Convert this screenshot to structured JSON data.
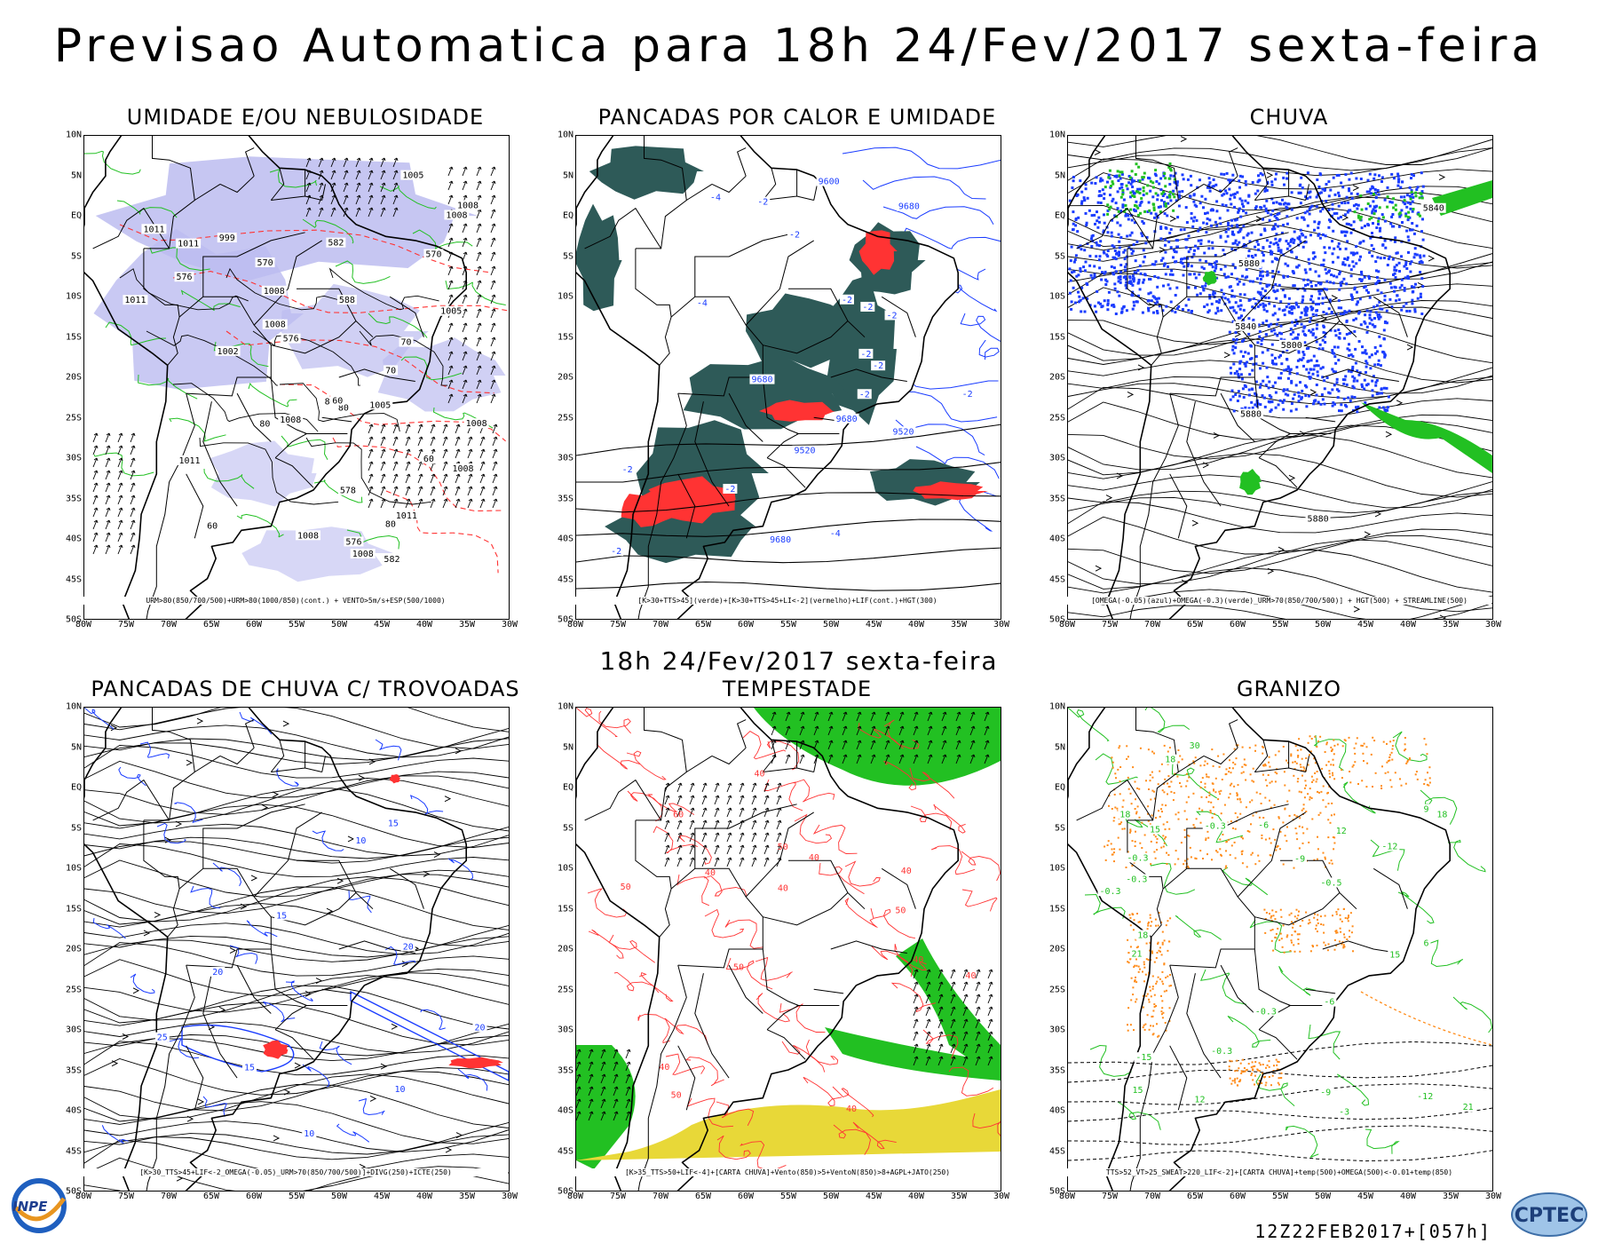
{
  "main_title": "Previsao Automatica  para 18h 24/Fev/2017 sexta-feira",
  "mid_title": "18h 24/Fev/2017 sexta-feira",
  "timestamp": "12Z22FEB2017+[057h]",
  "logos": {
    "left": "INPE",
    "right": "CPTEC"
  },
  "axes": {
    "lat_ticks": [
      "10N",
      "5N",
      "EQ",
      "5S",
      "10S",
      "15S",
      "20S",
      "25S",
      "30S",
      "35S",
      "40S",
      "45S",
      "50S"
    ],
    "lon_ticks": [
      "80W",
      "75W",
      "70W",
      "65W",
      "60W",
      "55W",
      "50W",
      "45W",
      "40W",
      "35W",
      "30W"
    ]
  },
  "colors": {
    "green": "#22c022",
    "red": "#ff3333",
    "blue": "#1a3cff",
    "lavender": "#bcbcf0",
    "darkteal": "#2e5a58",
    "yellow": "#e8d838",
    "orange": "#ff8c1a",
    "black": "#000000"
  },
  "panels": [
    {
      "title": "UMIDADE E/OU NEBULOSIDADE",
      "caption": "URM>80(850/700/500)+URM>80(1000/850)(cont.) + VENTO>5m/s+ESP(500/1000)",
      "labels": [
        "1011",
        "1005",
        "1008",
        "1002",
        "1008",
        "999",
        "1005",
        "1008",
        "1011",
        "1008",
        "1008",
        "1008",
        "1011",
        "1008",
        "1005",
        "1008",
        "1011",
        "1008",
        "1011",
        "576",
        "582",
        "588",
        "576",
        "570",
        "576",
        "570",
        "582",
        "578",
        "80",
        "60",
        "70",
        "80",
        "80",
        "70",
        "80",
        "60",
        "60"
      ]
    },
    {
      "title": "PANCADAS POR CALOR E UMIDADE",
      "caption": "[K>30+TTS>45](verde)+[K>30+TTS>45+LI<-2](vermelho)+LIF(cont.)+HGT(300)",
      "labels": [
        "9680",
        "9680",
        "9680",
        "9600",
        "9520",
        "9520",
        "9680",
        "-2",
        "-2",
        "-2",
        "-2",
        "-2",
        "-4",
        "-2",
        "-2",
        "-4",
        "-2",
        "-2",
        "-4",
        "-2",
        "-2",
        "-2"
      ]
    },
    {
      "title": "CHUVA",
      "caption": "[OMEGA(-0.05)(azul)+OMEGA(-0.3)(verde)_URM>70(850/700/500)] + HGT(500) + STREAMLINE(500)",
      "labels": [
        "5840",
        "5880",
        "5880",
        "5840",
        "5800",
        "5880"
      ]
    },
    {
      "title": "PANCADAS DE CHUVA C/ TROVOADAS",
      "caption": "[K>30_TTS>45+LIF<-2_OMEGA(-0.05)_URM>70(850/700/500)]+DIVG(250)+ICTE(250)",
      "labels": [
        "10",
        "20",
        "15",
        "10",
        "15",
        "20",
        "25",
        "15",
        "10",
        "20"
      ]
    },
    {
      "title": "TEMPESTADE",
      "caption": "[K>35_TTS>50+LIF<-4]+[CARTA CHUVA]+Vento(850)>5+VentoN(850)>8+AGPL+JATO(250)",
      "labels": [
        "50",
        "40",
        "50",
        "40",
        "50",
        "40",
        "40",
        "40",
        "40",
        "40",
        "50",
        "40",
        "50",
        "40",
        "60"
      ]
    },
    {
      "title": "GRANIZO",
      "caption": "TTS>52_VT>25_SWEAT>220_LIF<-2]+[CARTA CHUVA]+temp(500)+OMEGA(500)<-0.01+temp(850)",
      "labels": [
        "15",
        "21",
        "18",
        "12",
        "15",
        "18",
        "18",
        "15",
        "18",
        "21",
        "-0.3",
        "-0.3",
        "-0.3",
        "-0.3",
        "-0.3",
        "-6",
        "-9",
        "-12",
        "-15",
        "30",
        "-6",
        "-12",
        "-3",
        "-9",
        "12",
        "9",
        "6",
        "-0.5",
        "-0.3"
      ]
    }
  ]
}
